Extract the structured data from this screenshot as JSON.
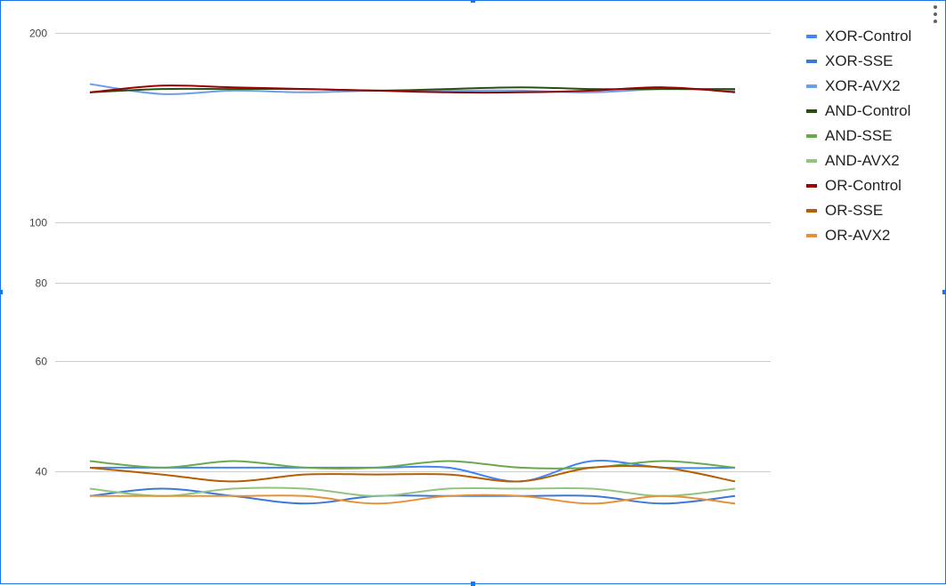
{
  "chart_data": {
    "type": "line",
    "title": "",
    "xlabel": "",
    "ylabel": "",
    "y_scale": "log",
    "ylim": [
      30,
      210
    ],
    "y_ticks": [
      40,
      60,
      80,
      100,
      200
    ],
    "grid": true,
    "legend_position": "right",
    "x": [
      1,
      2,
      3,
      4,
      5,
      6,
      7,
      8,
      9,
      10
    ],
    "series": [
      {
        "name": "XOR-Control",
        "color": "#4285f4",
        "values": [
          40.5,
          40.5,
          40.5,
          40.5,
          40.5,
          40.5,
          38.5,
          41.5,
          40.5,
          40.5
        ]
      },
      {
        "name": "XOR-SSE",
        "color": "#3c78d8",
        "values": [
          36.5,
          37.5,
          36.5,
          35.5,
          36.5,
          36.5,
          36.5,
          36.5,
          35.5,
          36.5
        ]
      },
      {
        "name": "XOR-AVX2",
        "color": "#6d9eeb",
        "values": [
          166,
          160,
          162,
          161,
          162,
          162,
          162,
          161,
          163,
          162
        ]
      },
      {
        "name": "AND-Control",
        "color": "#274e13",
        "values": [
          161,
          163,
          163,
          163,
          162,
          163,
          164,
          163,
          163,
          163
        ]
      },
      {
        "name": "AND-SSE",
        "color": "#6aa84f",
        "values": [
          41.5,
          40.5,
          41.5,
          40.5,
          40.5,
          41.5,
          40.5,
          40.5,
          41.5,
          40.5
        ]
      },
      {
        "name": "AND-AVX2",
        "color": "#93c47d",
        "values": [
          37.5,
          36.5,
          37.5,
          37.5,
          36.5,
          37.5,
          37.5,
          37.5,
          36.5,
          37.5
        ]
      },
      {
        "name": "OR-Control",
        "color": "#990000",
        "values": [
          161,
          165,
          164,
          163,
          162,
          161,
          161,
          162,
          164,
          161
        ]
      },
      {
        "name": "OR-SSE",
        "color": "#b45f06",
        "values": [
          40.5,
          39.5,
          38.5,
          39.5,
          39.5,
          39.5,
          38.5,
          40.5,
          40.5,
          38.5
        ]
      },
      {
        "name": "OR-AVX2",
        "color": "#e69138",
        "values": [
          36.5,
          36.5,
          36.5,
          36.5,
          35.5,
          36.5,
          36.5,
          35.5,
          36.5,
          35.5
        ]
      }
    ]
  }
}
